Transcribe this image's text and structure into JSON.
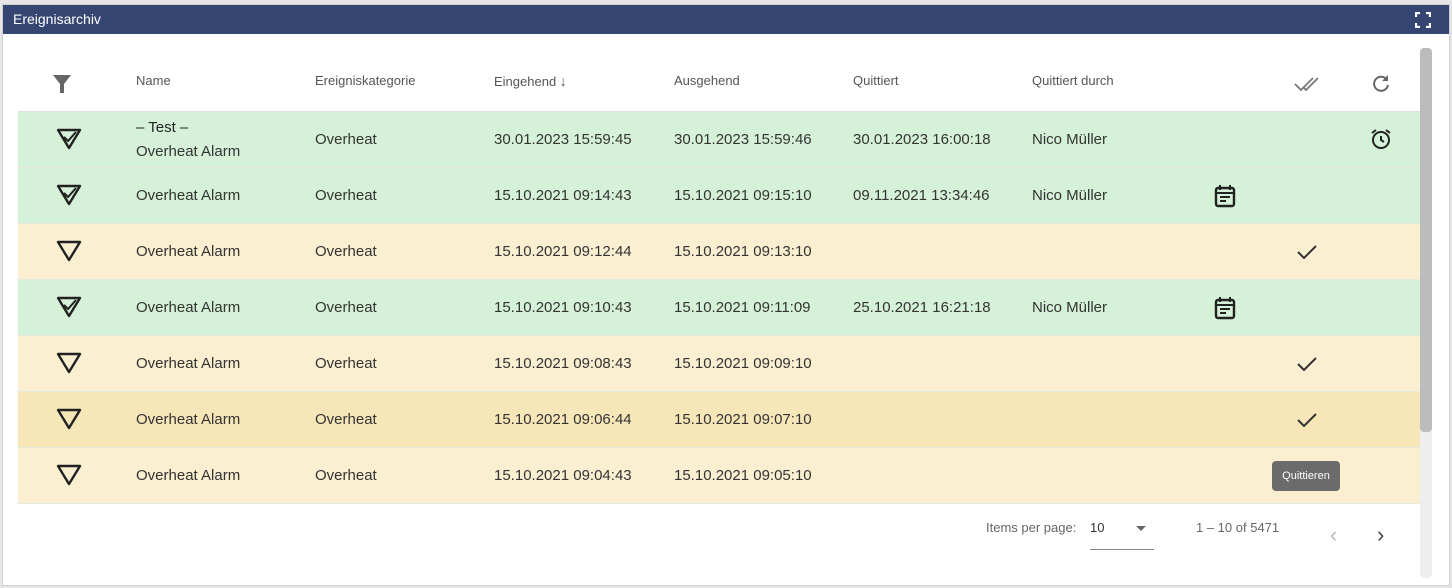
{
  "title": "Ereignisarchiv",
  "colors": {
    "header": "#354672",
    "acknowledged": "#d5f2d8",
    "unacknowledged": "#faefd0",
    "hover": "#f7e6b8"
  },
  "columns": {
    "name": "Name",
    "category": "Ereigniskategorie",
    "incoming": "Eingehend",
    "outgoing": "Ausgehend",
    "acknowledged": "Quittiert",
    "acknowledged_by": "Quittiert durch"
  },
  "rows": [
    {
      "title": "– Test –",
      "name": "Overheat Alarm",
      "category": "Overheat",
      "incoming": "30.01.2023 15:59:45",
      "outgoing": "30.01.2023 15:59:46",
      "acknowledged": "30.01.2023 16:00:18",
      "by": "Nico Müller",
      "state": "acknowledged",
      "icon": "alarm-clock-icon"
    },
    {
      "name": "Overheat Alarm",
      "category": "Overheat",
      "incoming": "15.10.2021 09:14:43",
      "outgoing": "15.10.2021 09:15:10",
      "acknowledged": "09.11.2021 13:34:46",
      "by": "Nico Müller",
      "state": "acknowledged",
      "icon": "calendar-icon"
    },
    {
      "name": "Overheat Alarm",
      "category": "Overheat",
      "incoming": "15.10.2021 09:12:44",
      "outgoing": "15.10.2021 09:13:10",
      "acknowledged": "",
      "by": "",
      "state": "unacknowledged",
      "icon": "check-icon"
    },
    {
      "name": "Overheat Alarm",
      "category": "Overheat",
      "incoming": "15.10.2021 09:10:43",
      "outgoing": "15.10.2021 09:11:09",
      "acknowledged": "25.10.2021 16:21:18",
      "by": "Nico Müller",
      "state": "acknowledged",
      "icon": "calendar-icon"
    },
    {
      "name": "Overheat Alarm",
      "category": "Overheat",
      "incoming": "15.10.2021 09:08:43",
      "outgoing": "15.10.2021 09:09:10",
      "acknowledged": "",
      "by": "",
      "state": "unacknowledged",
      "icon": "check-icon"
    },
    {
      "name": "Overheat Alarm",
      "category": "Overheat",
      "incoming": "15.10.2021 09:06:44",
      "outgoing": "15.10.2021 09:07:10",
      "acknowledged": "",
      "by": "",
      "state": "hover",
      "icon": "check-icon"
    },
    {
      "name": "Overheat Alarm",
      "category": "Overheat",
      "incoming": "15.10.2021 09:04:43",
      "outgoing": "15.10.2021 09:05:10",
      "acknowledged": "",
      "by": "",
      "state": "unacknowledged",
      "icon": ""
    }
  ],
  "tooltip": "Quittieren",
  "paginator": {
    "items_per_page_label": "Items per page:",
    "page_size": "10",
    "range": "1 – 10 of 5471"
  }
}
